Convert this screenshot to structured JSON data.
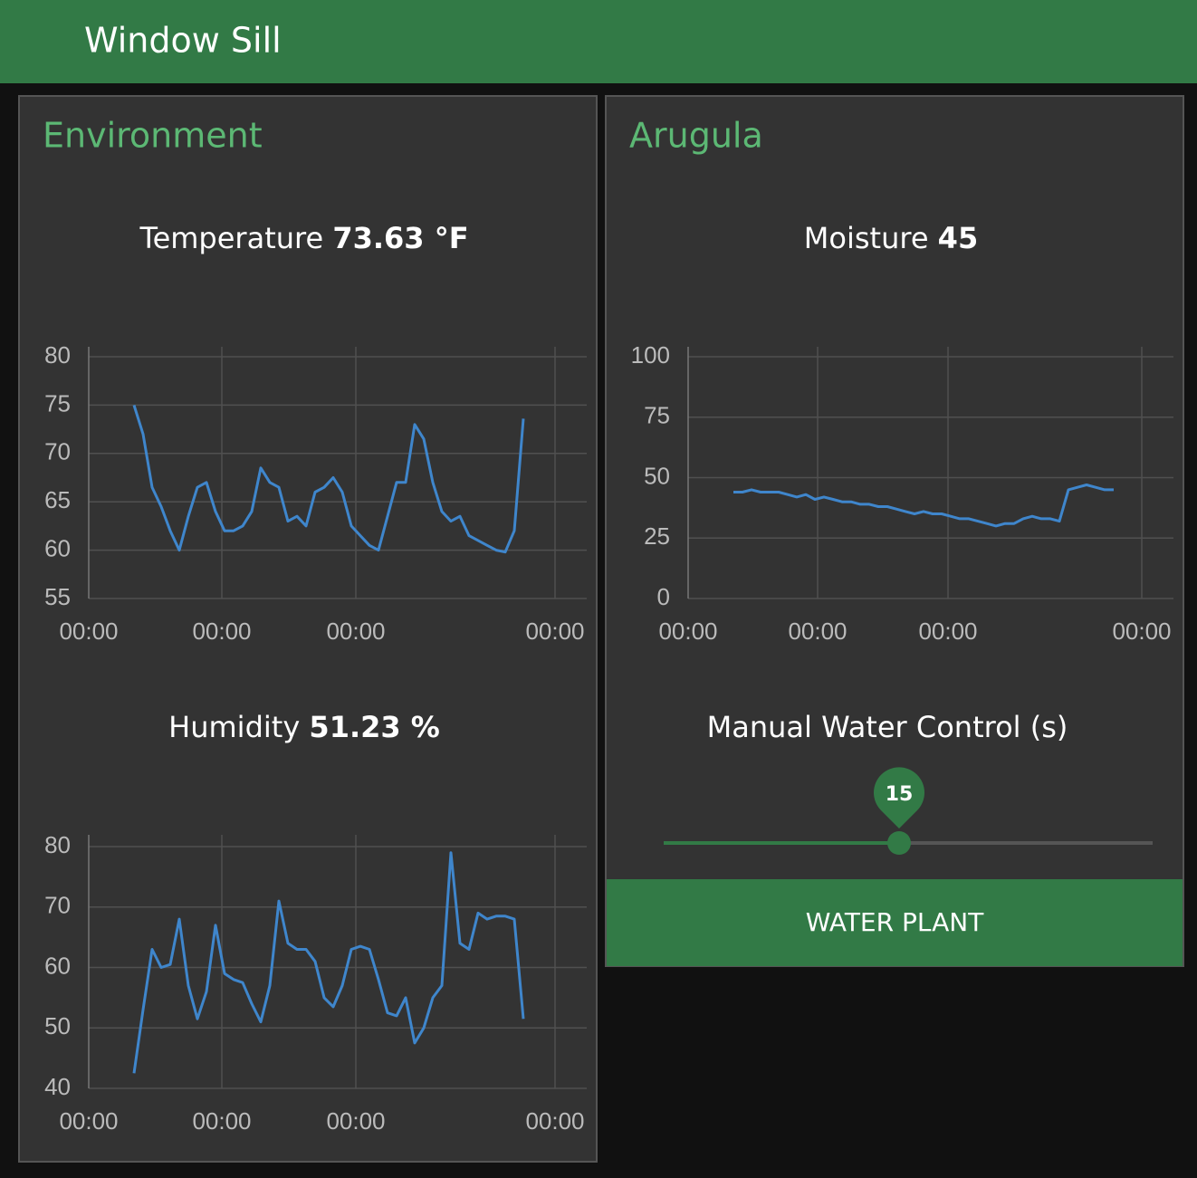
{
  "header": {
    "title": "Window Sill"
  },
  "groups": [
    {
      "title": "Environment"
    },
    {
      "title": "Arugula"
    }
  ],
  "chart_data": [
    {
      "type": "line",
      "title": "Temperature",
      "reading": "73.63 °F",
      "color": "#3f86cc",
      "grid": true,
      "x": [
        5,
        6,
        7,
        8,
        9,
        10,
        11,
        12,
        13,
        14,
        15,
        16,
        17,
        18,
        19,
        20,
        21,
        22,
        23,
        24,
        25,
        26,
        27,
        28,
        29,
        30,
        31,
        32,
        33,
        34,
        35,
        36,
        37,
        38,
        39,
        40,
        41,
        42,
        43,
        44,
        45,
        46,
        47,
        48
      ],
      "values": [
        75,
        72,
        66.5,
        64.5,
        62,
        60,
        63.5,
        66.5,
        67,
        64,
        62,
        62,
        62.5,
        64,
        68.5,
        67,
        66.5,
        63,
        63.5,
        62.5,
        66,
        66.5,
        67.5,
        66,
        62.5,
        61.5,
        60.5,
        60,
        63.5,
        67,
        67,
        73,
        71.5,
        67,
        64,
        63,
        63.5,
        61.5,
        61,
        60.5,
        60,
        59.8,
        62,
        73.6
      ],
      "xlim": [
        0,
        55
      ],
      "xticks": [
        {
          "value": 0,
          "label": "00:00"
        },
        {
          "value": 14.7,
          "label": "00:00"
        },
        {
          "value": 29.5,
          "label": "00:00"
        },
        {
          "value": 51.5,
          "label": "00:00"
        }
      ],
      "ylim": [
        55,
        80
      ],
      "yticks": [
        55,
        60,
        65,
        70,
        75,
        80
      ]
    },
    {
      "type": "line",
      "title": "Humidity",
      "reading": "51.23 %",
      "color": "#3f86cc",
      "grid": true,
      "x": [
        5,
        6,
        7,
        8,
        9,
        10,
        11,
        12,
        13,
        14,
        15,
        16,
        17,
        18,
        19,
        20,
        21,
        22,
        23,
        24,
        25,
        26,
        27,
        28,
        29,
        30,
        31,
        32,
        33,
        34,
        35,
        36,
        37,
        38,
        39,
        40,
        41,
        42,
        43,
        44,
        45,
        46,
        47,
        48
      ],
      "values": [
        42.5,
        53,
        63,
        60,
        60.5,
        68,
        57,
        51.5,
        56,
        67,
        59,
        58,
        57.5,
        54,
        51,
        57,
        71,
        64,
        63,
        63,
        61,
        55,
        53.5,
        57,
        63,
        63.5,
        63,
        58,
        52.5,
        52,
        55,
        47.5,
        50,
        55,
        57,
        79,
        64,
        63,
        69,
        68,
        68.5,
        68.5,
        68,
        51.5
      ],
      "xlim": [
        0,
        55
      ],
      "xticks": [
        {
          "value": 0,
          "label": "00:00"
        },
        {
          "value": 14.7,
          "label": "00:00"
        },
        {
          "value": 29.5,
          "label": "00:00"
        },
        {
          "value": 51.5,
          "label": "00:00"
        }
      ],
      "ylim": [
        40,
        80
      ],
      "yticks": [
        40,
        50,
        60,
        70,
        80
      ]
    },
    {
      "type": "line",
      "title": "Moisture",
      "reading": "45",
      "color": "#3f86cc",
      "grid": true,
      "x": [
        5,
        6,
        7,
        8,
        9,
        10,
        11,
        12,
        13,
        14,
        15,
        16,
        17,
        18,
        19,
        20,
        21,
        22,
        23,
        24,
        25,
        26,
        27,
        28,
        29,
        30,
        31,
        32,
        33,
        34,
        35,
        36,
        37,
        38,
        39,
        40,
        41,
        42,
        43,
        44,
        45,
        46,
        47
      ],
      "values": [
        44,
        44,
        45,
        44,
        44,
        44,
        43,
        42,
        43,
        41,
        42,
        41,
        40,
        40,
        39,
        39,
        38,
        38,
        37,
        36,
        35,
        36,
        35,
        35,
        34,
        33,
        33,
        32,
        31,
        30,
        31,
        31,
        33,
        34,
        33,
        33,
        32,
        45,
        46,
        47,
        46,
        45,
        45
      ],
      "xlim": [
        0,
        53.6
      ],
      "xticks": [
        {
          "value": 0,
          "label": "00:00"
        },
        {
          "value": 14.3,
          "label": "00:00"
        },
        {
          "value": 28.7,
          "label": "00:00"
        },
        {
          "value": 50.1,
          "label": "00:00"
        }
      ],
      "ylim": [
        0,
        100
      ],
      "yticks": [
        0,
        25,
        50,
        75,
        100
      ]
    }
  ],
  "slider": {
    "label": "Manual Water Control (s)",
    "value": 15
  },
  "button": {
    "label": "WATER PLANT"
  }
}
